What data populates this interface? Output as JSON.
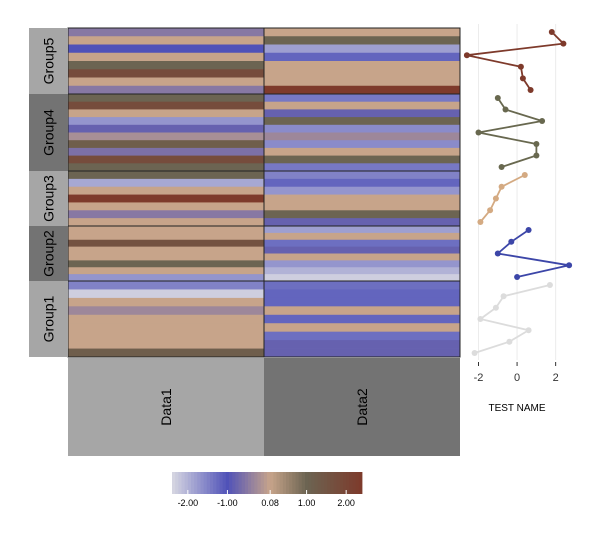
{
  "chart_data": [
    {
      "type": "heatmap",
      "groups": [
        {
          "label": "Group5",
          "data1": [
            -0.5,
            0.08,
            -1.0,
            0.08,
            1.0,
            1.8,
            0.08,
            -0.5
          ],
          "data2": [
            0.08,
            1.0,
            -1.8,
            -1.2,
            0.08,
            0.08,
            0.08,
            2.4
          ]
        },
        {
          "label": "Group4",
          "data1": [
            1.0,
            1.8,
            0.08,
            -1.7,
            -0.8,
            -0.2,
            1.2,
            -0.6,
            1.8,
            1.0
          ],
          "data2": [
            -1.4,
            0.08,
            -0.8,
            1.0,
            -1.6,
            -0.3,
            -1.6,
            0.08,
            1.0,
            -1.4
          ]
        },
        {
          "label": "Group3",
          "data1": [
            1.0,
            -1.9,
            0.08,
            2.4,
            0.08,
            -0.5,
            0.08
          ],
          "data2": [
            -1.5,
            -1.2,
            -1.7,
            0.08,
            0.08,
            1.0,
            -0.8
          ]
        },
        {
          "label": "Group2",
          "data1": [
            0.08,
            0.08,
            1.6,
            0.08,
            0.08,
            1.0,
            0.08,
            -1.7
          ],
          "data2": [
            -1.8,
            0.08,
            -1.3,
            -0.8,
            0.08,
            -1.7,
            -2.0,
            -2.3
          ]
        },
        {
          "label": "Group1",
          "data1": [
            -1.5,
            -2.3,
            0.08,
            -0.3,
            0.08,
            0.08,
            0.08,
            0.08,
            1.2
          ],
          "data2": [
            -1.3,
            -1.2,
            -1.2,
            0.08,
            -1.2,
            0.08,
            -1.3,
            -0.8,
            -0.8
          ]
        }
      ],
      "columns": [
        "Data1",
        "Data2"
      ]
    },
    {
      "type": "line",
      "xlabel": "TEST NAME",
      "xticks": [
        -2,
        0,
        2
      ],
      "xlim": [
        -2.7,
        2.9
      ],
      "series": [
        {
          "group": "Group5",
          "values": [
            1.8,
            2.4,
            -2.6,
            0.2,
            0.3,
            0.7
          ]
        },
        {
          "group": "Group4",
          "values": [
            -1.0,
            -0.6,
            1.3,
            -2.0,
            1.0,
            1.0,
            -0.8
          ]
        },
        {
          "group": "Group3",
          "values": [
            0.4,
            -0.8,
            -1.1,
            -1.4,
            -1.9
          ]
        },
        {
          "group": "Group2",
          "values": [
            0.6,
            -0.3,
            -1.0,
            2.7,
            0.0
          ]
        },
        {
          "group": "Group1",
          "values": [
            1.7,
            -0.7,
            -1.1,
            -1.9,
            0.6,
            -0.4,
            -2.2
          ]
        }
      ]
    }
  ],
  "legend": {
    "tick_labels": [
      "-2.00",
      "-1.00",
      "0.08",
      "1.00",
      "2.00"
    ],
    "tick_values": [
      -2.0,
      -1.0,
      0.08,
      1.0,
      2.0
    ]
  },
  "colors": {
    "group_strip_light": "#a6a6a6",
    "group_strip_dark": "#737373",
    "series": [
      "#7e3a2b",
      "#68684f",
      "#d4aa82",
      "#3c46a8",
      "#dcdcdc"
    ],
    "scale": [
      "#d8d8e2",
      "#5052b8",
      "#c7a48a",
      "#6c6452",
      "#7e3a2b"
    ]
  }
}
